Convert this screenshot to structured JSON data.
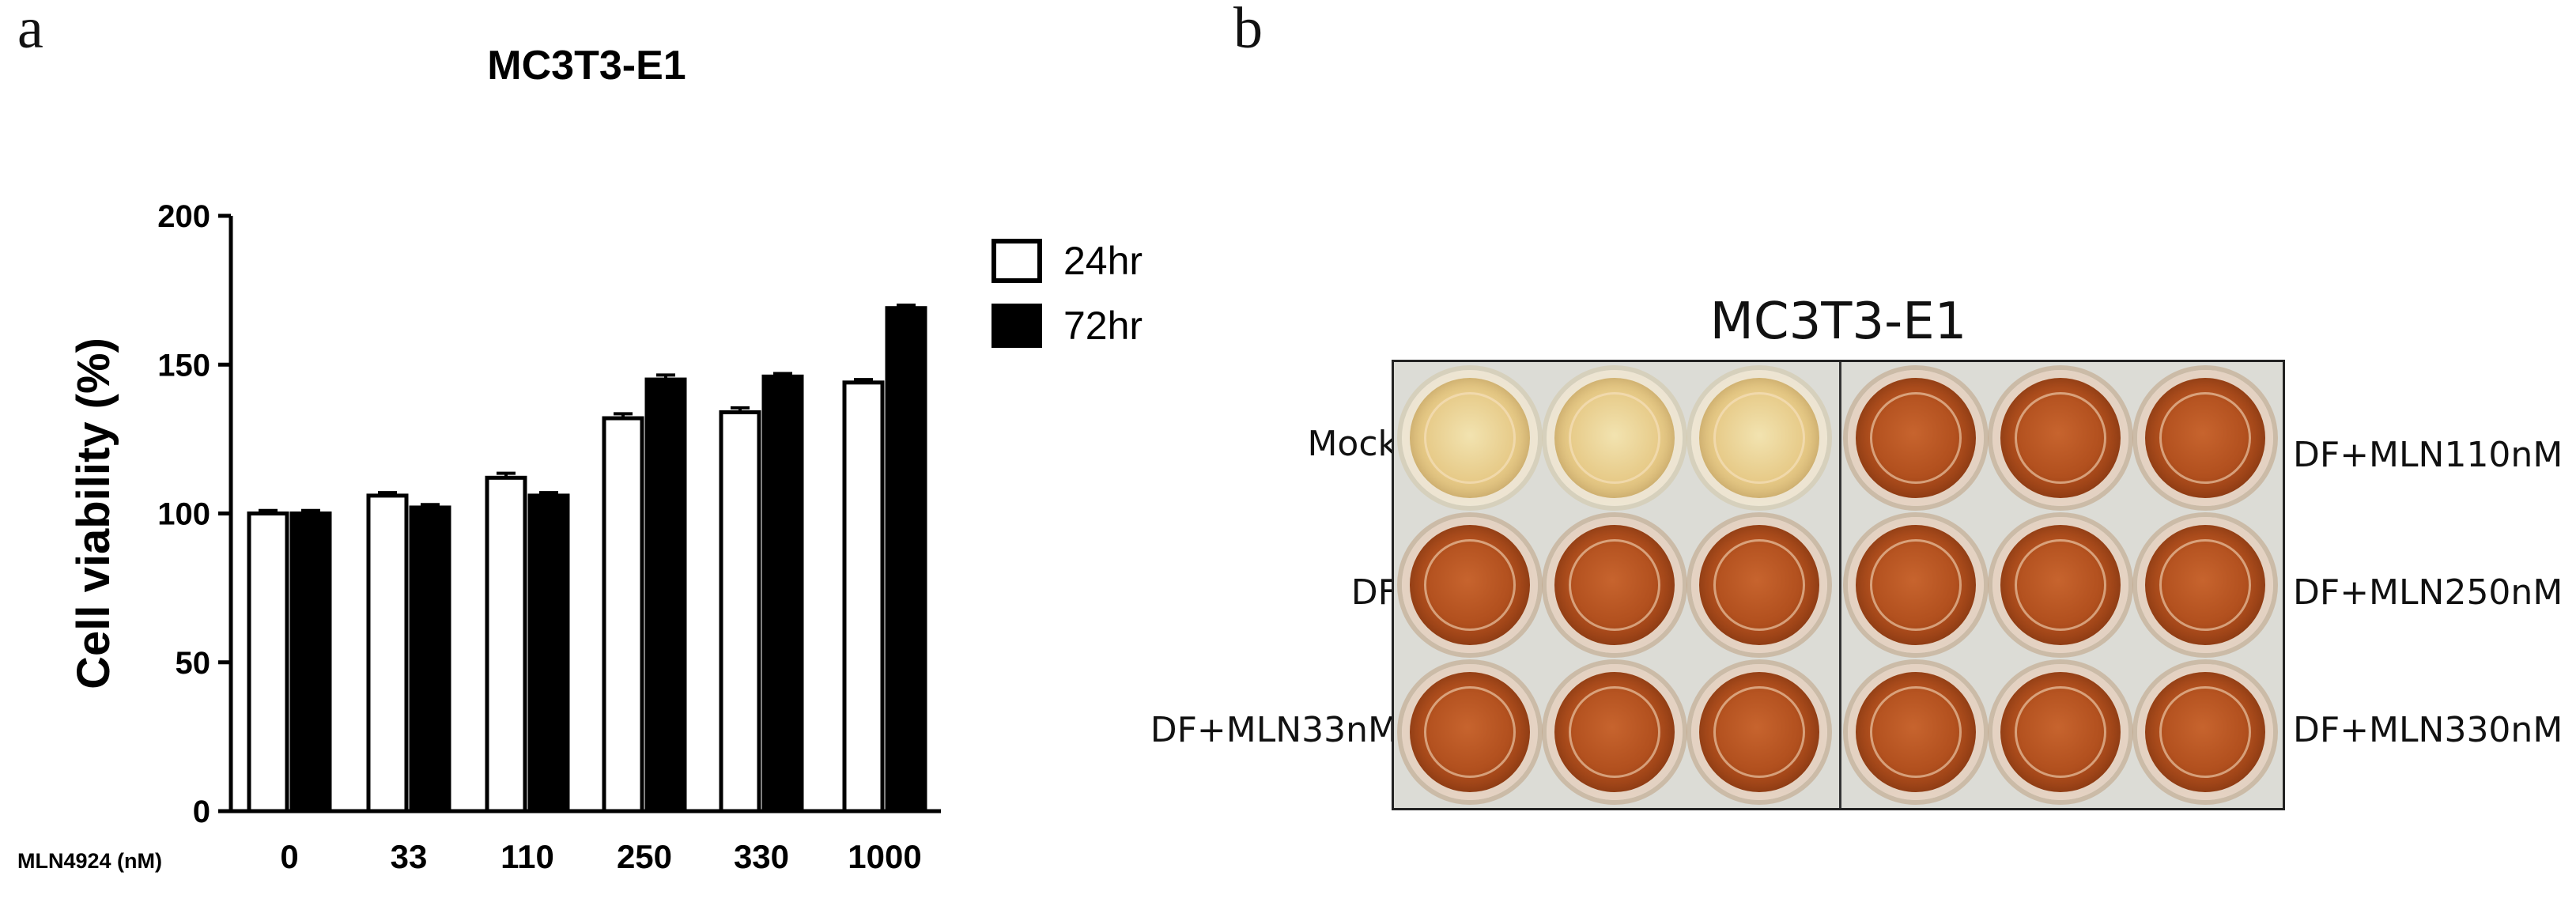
{
  "panel_a": {
    "letter": "a"
  },
  "panel_b": {
    "letter": "b"
  },
  "chart_data": {
    "type": "bar",
    "title": "MC3T3-E1",
    "xlabel": "MLN4924 (nM)",
    "ylabel": "Cell viability (%)",
    "ylim": [
      0,
      200
    ],
    "yticks": [
      0,
      50,
      100,
      150,
      200
    ],
    "categories": [
      "0",
      "33",
      "110",
      "250",
      "330",
      "1000"
    ],
    "series": [
      {
        "name": "24hr",
        "values": [
          100,
          106,
          112,
          132,
          134,
          144
        ],
        "errors": [
          1,
          1,
          1.5,
          1.5,
          1.5,
          1
        ],
        "fill": "#ffffff",
        "stroke": "#000000"
      },
      {
        "name": "72hr",
        "values": [
          100,
          102,
          106,
          145,
          146,
          169
        ],
        "errors": [
          1,
          1,
          1,
          1.5,
          1,
          1
        ],
        "fill": "#000000",
        "stroke": "#000000"
      }
    ],
    "legend_position": "top-right",
    "grid": false
  },
  "plate": {
    "title": "MC3T3-E1",
    "left_labels": [
      "Mock",
      "DF",
      "DF+MLN33nM"
    ],
    "right_labels": [
      "DF+MLN110nM",
      "DF+MLN250nM",
      "DF+MLN330nM"
    ]
  }
}
